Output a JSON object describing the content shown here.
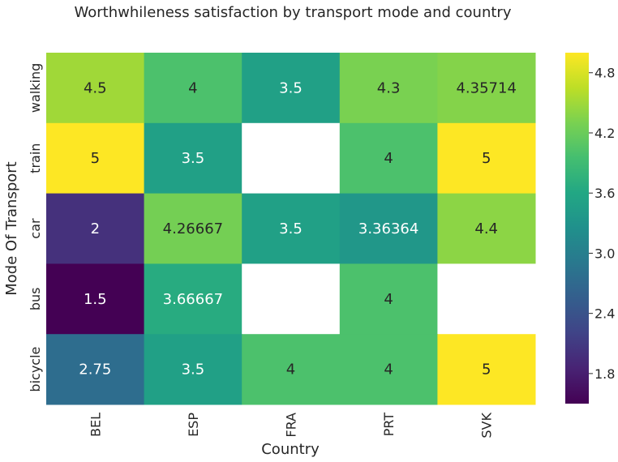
{
  "chart_data": {
    "type": "heatmap",
    "title": "Worthwhileness satisfaction by transport mode and country",
    "xlabel": "Country",
    "ylabel": "Mode Of Transport",
    "x_categories": [
      "BEL",
      "ESP",
      "FRA",
      "PRT",
      "SVK"
    ],
    "y_categories": [
      "walking",
      "train",
      "car",
      "bus",
      "bicycle"
    ],
    "values": [
      [
        4.5,
        4,
        3.5,
        4.3,
        4.35714
      ],
      [
        5,
        3.5,
        null,
        4,
        5
      ],
      [
        2,
        4.26667,
        3.5,
        3.36364,
        4.4
      ],
      [
        1.5,
        3.66667,
        null,
        4,
        null
      ],
      [
        2.75,
        3.5,
        4,
        4,
        5
      ]
    ],
    "value_labels": [
      [
        "4.5",
        "4",
        "3.5",
        "4.3",
        "4.35714"
      ],
      [
        "5",
        "3.5",
        "",
        "4",
        "5"
      ],
      [
        "2",
        "4.26667",
        "3.5",
        "3.36364",
        "4.4"
      ],
      [
        "1.5",
        "3.66667",
        "",
        "4",
        ""
      ],
      [
        "2.75",
        "3.5",
        "4",
        "4",
        "5"
      ]
    ],
    "colormap": "viridis",
    "vmin": 1.5,
    "vmax": 5,
    "colorbar_ticks": [
      1.8,
      2.4,
      3.0,
      3.6,
      4.2,
      4.8
    ],
    "colorbar_tick_labels": [
      "1.8",
      "2.4",
      "3.0",
      "3.6",
      "4.2",
      "4.8"
    ],
    "missing_color": "#ffffff"
  }
}
